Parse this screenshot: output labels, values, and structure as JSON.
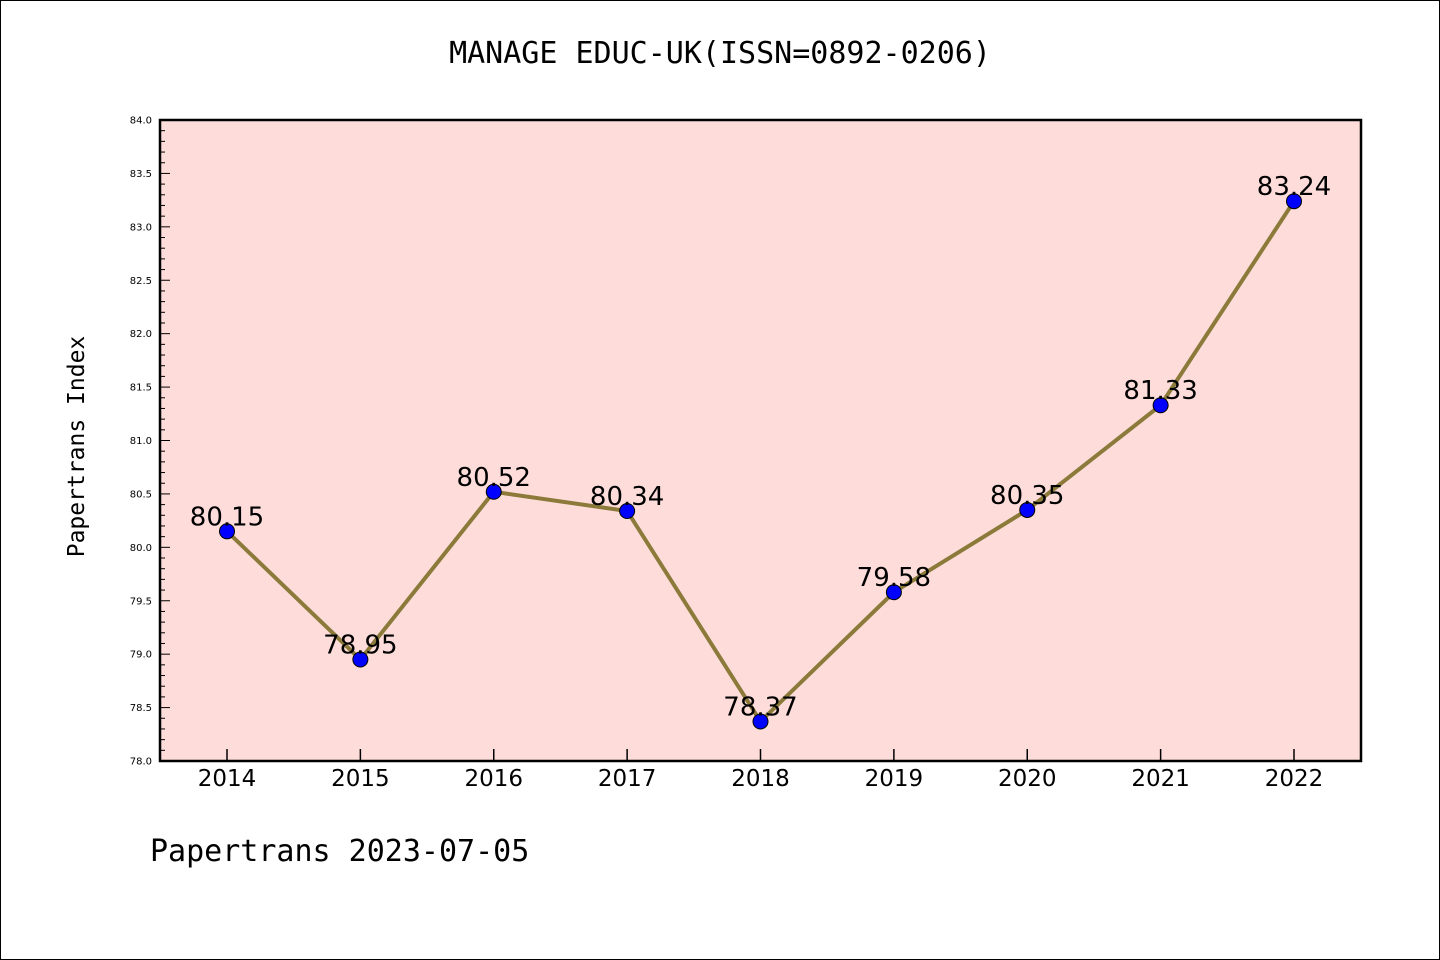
{
  "title": "MANAGE EDUC-UK(ISSN=0892-0206)",
  "footer": "Papertrans 2023-07-05",
  "colors": {
    "plot_background": "#fddcda",
    "line": "#8b7a3a",
    "marker": "#0000ff"
  },
  "chart_data": {
    "type": "line",
    "title": "MANAGE EDUC-UK(ISSN=0892-0206)",
    "xlabel": "",
    "ylabel": "Papertrans Index",
    "categories": [
      "2014",
      "2015",
      "2016",
      "2017",
      "2018",
      "2019",
      "2020",
      "2021",
      "2022"
    ],
    "values": [
      80.15,
      78.95,
      80.52,
      80.34,
      78.37,
      79.58,
      80.35,
      81.33,
      83.24
    ],
    "data_labels": [
      "80.15",
      "78.95",
      "80.52",
      "80.34",
      "78.37",
      "79.58",
      "80.35",
      "81.33",
      "83.24"
    ],
    "ylim": [
      78.0,
      84.0
    ],
    "yticks": [
      "78.0",
      "78.5",
      "79.0",
      "79.5",
      "80.0",
      "80.5",
      "81.0",
      "81.5",
      "82.0",
      "82.5",
      "83.0",
      "83.5",
      "84.0"
    ],
    "grid": false,
    "legend": "none"
  }
}
